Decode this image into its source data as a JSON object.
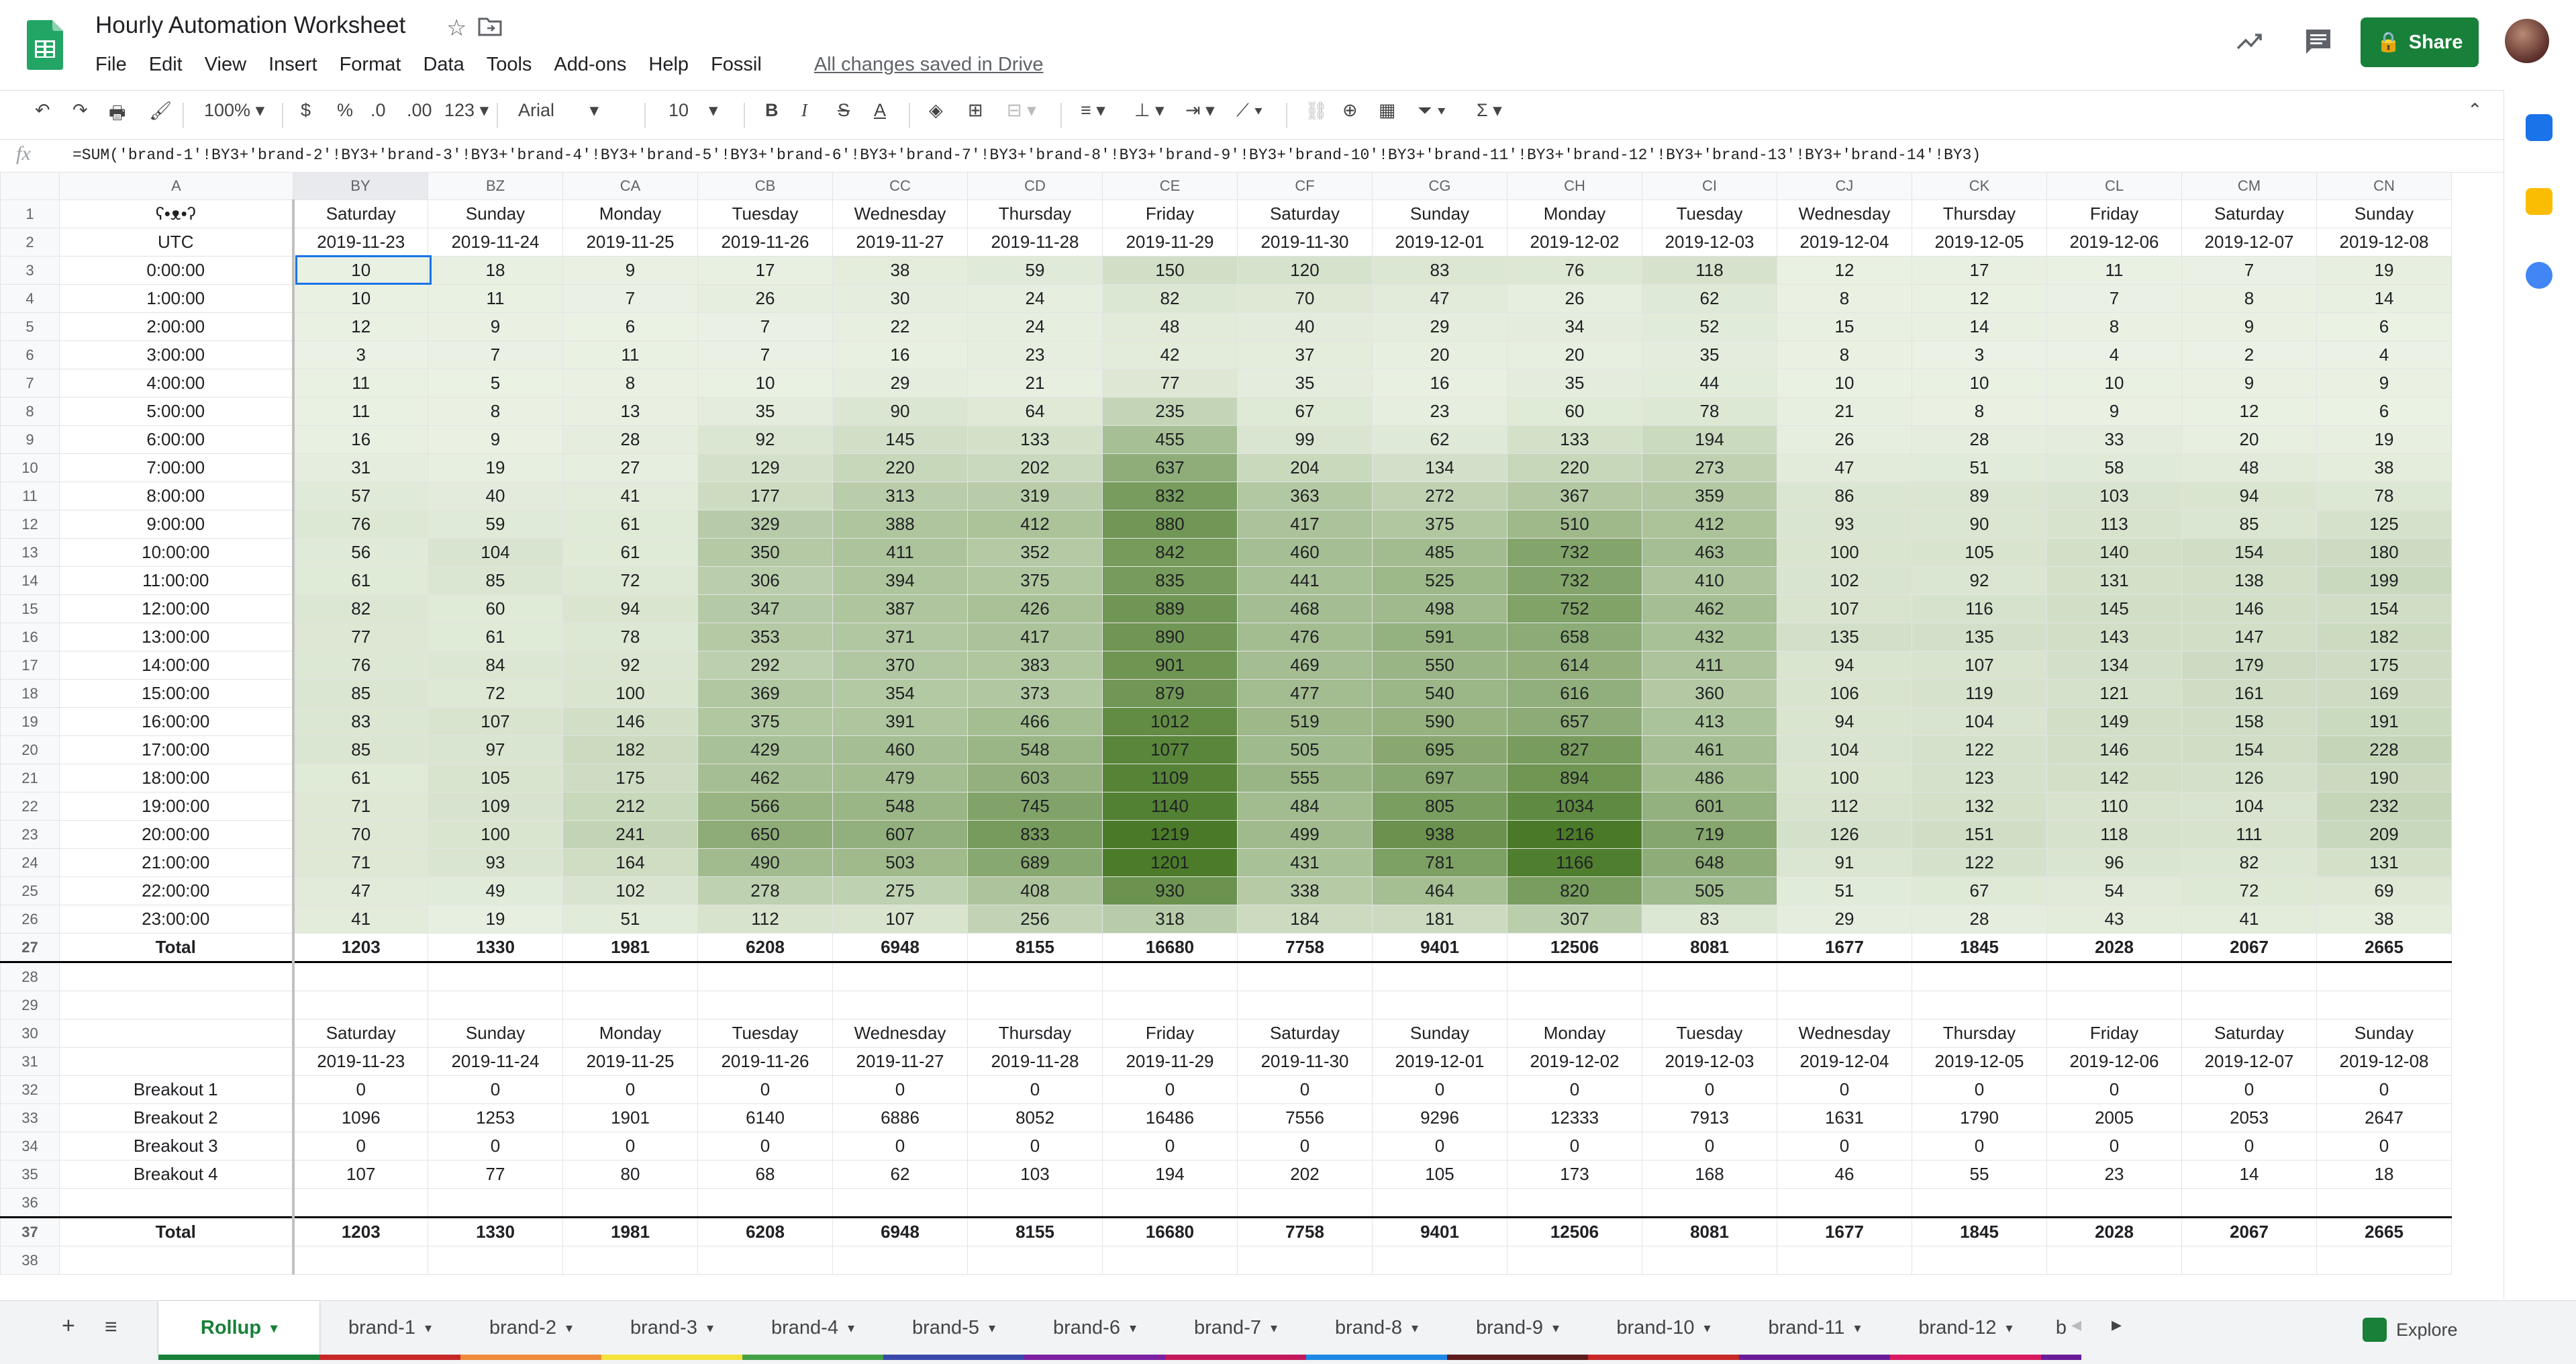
{
  "app": {
    "title": "Hourly Automation Worksheet",
    "menus": [
      "File",
      "Edit",
      "View",
      "Insert",
      "Format",
      "Data",
      "Tools",
      "Add-ons",
      "Help",
      "Fossil"
    ],
    "saved_status": "All changes saved in Drive",
    "share_label": "Share"
  },
  "toolbar": {
    "zoom": "100%",
    "currency": "$",
    "percent": "%",
    "dec_less": ".0",
    "dec_more": ".00",
    "more_formats": "123",
    "font": "Arial",
    "font_size": "10",
    "bold": "B",
    "italic": "I",
    "strike": "S",
    "text_color": "A",
    "function": "Σ"
  },
  "formula_bar": {
    "fx": "fx",
    "formula": "=SUM('brand-1'!BY3+'brand-2'!BY3+'brand-3'!BY3+'brand-4'!BY3+'brand-5'!BY3+'brand-6'!BY3+'brand-7'!BY3+'brand-8'!BY3+'brand-9'!BY3+'brand-10'!BY3+'brand-11'!BY3+'brand-12'!BY3+'brand-13'!BY3+'brand-14'!BY3)"
  },
  "grid": {
    "col_headers": [
      "A",
      "BY",
      "BZ",
      "CA",
      "CB",
      "CC",
      "CD",
      "CE",
      "CF",
      "CG",
      "CH",
      "CI",
      "CJ",
      "CK",
      "CL",
      "CM",
      "CN"
    ],
    "row1": [
      "ʕ•ᴥ•ʔ",
      "Saturday",
      "Sunday",
      "Monday",
      "Tuesday",
      "Wednesday",
      "Thursday",
      "Friday",
      "Saturday",
      "Sunday",
      "Monday",
      "Tuesday",
      "Wednesday",
      "Thursday",
      "Friday",
      "Saturday",
      "Sunday"
    ],
    "row2": [
      "UTC",
      "2019-11-23",
      "2019-11-24",
      "2019-11-25",
      "2019-11-26",
      "2019-11-27",
      "2019-11-28",
      "2019-11-29",
      "2019-11-30",
      "2019-12-01",
      "2019-12-02",
      "2019-12-03",
      "2019-12-04",
      "2019-12-05",
      "2019-12-06",
      "2019-12-07",
      "2019-12-08"
    ],
    "hours": [
      "0:00:00",
      "1:00:00",
      "2:00:00",
      "3:00:00",
      "4:00:00",
      "5:00:00",
      "6:00:00",
      "7:00:00",
      "8:00:00",
      "9:00:00",
      "10:00:00",
      "11:00:00",
      "12:00:00",
      "13:00:00",
      "14:00:00",
      "15:00:00",
      "16:00:00",
      "17:00:00",
      "18:00:00",
      "19:00:00",
      "20:00:00",
      "21:00:00",
      "22:00:00",
      "23:00:00"
    ],
    "hourly": [
      [
        10,
        18,
        9,
        17,
        38,
        59,
        150,
        120,
        83,
        76,
        118,
        12,
        17,
        11,
        7,
        19
      ],
      [
        10,
        11,
        7,
        26,
        30,
        24,
        82,
        70,
        47,
        26,
        62,
        8,
        12,
        7,
        8,
        14
      ],
      [
        12,
        9,
        6,
        7,
        22,
        24,
        48,
        40,
        29,
        34,
        52,
        15,
        14,
        8,
        9,
        6
      ],
      [
        3,
        7,
        11,
        7,
        16,
        23,
        42,
        37,
        20,
        20,
        35,
        8,
        3,
        4,
        2,
        4
      ],
      [
        11,
        5,
        8,
        10,
        29,
        21,
        77,
        35,
        16,
        35,
        44,
        10,
        10,
        10,
        9,
        9
      ],
      [
        11,
        8,
        13,
        35,
        90,
        64,
        235,
        67,
        23,
        60,
        78,
        21,
        8,
        9,
        12,
        6
      ],
      [
        16,
        9,
        28,
        92,
        145,
        133,
        455,
        99,
        62,
        133,
        194,
        26,
        28,
        33,
        20,
        19
      ],
      [
        31,
        19,
        27,
        129,
        220,
        202,
        637,
        204,
        134,
        220,
        273,
        47,
        51,
        58,
        48,
        38
      ],
      [
        57,
        40,
        41,
        177,
        313,
        319,
        832,
        363,
        272,
        367,
        359,
        86,
        89,
        103,
        94,
        78
      ],
      [
        76,
        59,
        61,
        329,
        388,
        412,
        880,
        417,
        375,
        510,
        412,
        93,
        90,
        113,
        85,
        125
      ],
      [
        56,
        104,
        61,
        350,
        411,
        352,
        842,
        460,
        485,
        732,
        463,
        100,
        105,
        140,
        154,
        180
      ],
      [
        61,
        85,
        72,
        306,
        394,
        375,
        835,
        441,
        525,
        732,
        410,
        102,
        92,
        131,
        138,
        199
      ],
      [
        82,
        60,
        94,
        347,
        387,
        426,
        889,
        468,
        498,
        752,
        462,
        107,
        116,
        145,
        146,
        154
      ],
      [
        77,
        61,
        78,
        353,
        371,
        417,
        890,
        476,
        591,
        658,
        432,
        135,
        135,
        143,
        147,
        182
      ],
      [
        76,
        84,
        92,
        292,
        370,
        383,
        901,
        469,
        550,
        614,
        411,
        94,
        107,
        134,
        179,
        175
      ],
      [
        85,
        72,
        100,
        369,
        354,
        373,
        879,
        477,
        540,
        616,
        360,
        106,
        119,
        121,
        161,
        169
      ],
      [
        83,
        107,
        146,
        375,
        391,
        466,
        1012,
        519,
        590,
        657,
        413,
        94,
        104,
        149,
        158,
        191
      ],
      [
        85,
        97,
        182,
        429,
        460,
        548,
        1077,
        505,
        695,
        827,
        461,
        104,
        122,
        146,
        154,
        228
      ],
      [
        61,
        105,
        175,
        462,
        479,
        603,
        1109,
        555,
        697,
        894,
        486,
        100,
        123,
        142,
        126,
        190
      ],
      [
        71,
        109,
        212,
        566,
        548,
        745,
        1140,
        484,
        805,
        1034,
        601,
        112,
        132,
        110,
        104,
        232
      ],
      [
        70,
        100,
        241,
        650,
        607,
        833,
        1219,
        499,
        938,
        1216,
        719,
        126,
        151,
        118,
        111,
        209
      ],
      [
        71,
        93,
        164,
        490,
        503,
        689,
        1201,
        431,
        781,
        1166,
        648,
        91,
        122,
        96,
        82,
        131
      ],
      [
        47,
        49,
        102,
        278,
        275,
        408,
        930,
        338,
        464,
        820,
        505,
        51,
        67,
        54,
        72,
        69
      ],
      [
        41,
        19,
        51,
        112,
        107,
        256,
        318,
        184,
        181,
        307,
        83,
        29,
        28,
        43,
        41,
        38
      ]
    ],
    "total_label": "Total",
    "totals": [
      1203,
      1330,
      1981,
      6208,
      6948,
      8155,
      16680,
      7758,
      9401,
      12506,
      8081,
      1677,
      1845,
      2028,
      2067,
      2665
    ],
    "breakouts": [
      {
        "label": "Breakout 1",
        "values": [
          0,
          0,
          0,
          0,
          0,
          0,
          0,
          0,
          0,
          0,
          0,
          0,
          0,
          0,
          0,
          0
        ]
      },
      {
        "label": "Breakout 2",
        "values": [
          1096,
          1253,
          1901,
          6140,
          6886,
          8052,
          16486,
          7556,
          9296,
          12333,
          7913,
          1631,
          1790,
          2005,
          2053,
          2647
        ]
      },
      {
        "label": "Breakout 3",
        "values": [
          0,
          0,
          0,
          0,
          0,
          0,
          0,
          0,
          0,
          0,
          0,
          0,
          0,
          0,
          0,
          0
        ]
      },
      {
        "label": "Breakout 4",
        "values": [
          107,
          77,
          80,
          68,
          62,
          103,
          194,
          202,
          105,
          173,
          168,
          46,
          55,
          23,
          14,
          18
        ]
      }
    ]
  },
  "sheet_tabs": [
    {
      "label": "Rollup",
      "color": "#188038"
    },
    {
      "label": "brand-1",
      "color": "#c62828"
    },
    {
      "label": "brand-2",
      "color": "#ef8a3a"
    },
    {
      "label": "brand-3",
      "color": "#f5e23a"
    },
    {
      "label": "brand-4",
      "color": "#43a047"
    },
    {
      "label": "brand-5",
      "color": "#3949ab"
    },
    {
      "label": "brand-6",
      "color": "#7b1fa2"
    },
    {
      "label": "brand-7",
      "color": "#c2185b"
    },
    {
      "label": "brand-8",
      "color": "#1e88e5"
    },
    {
      "label": "brand-9",
      "color": "#5d1b1b"
    },
    {
      "label": "brand-10",
      "color": "#c62828"
    },
    {
      "label": "brand-11",
      "color": "#6a1b9a"
    },
    {
      "label": "brand-12",
      "color": "#d81b60"
    },
    {
      "label": "b",
      "color": "#6a1b9a"
    }
  ],
  "explore_label": "Explore",
  "colors": {
    "accent": "#188038",
    "heat_max": "#4e7d2c",
    "heat_min": "#e8f0e0",
    "selection": "#1a73e8"
  }
}
